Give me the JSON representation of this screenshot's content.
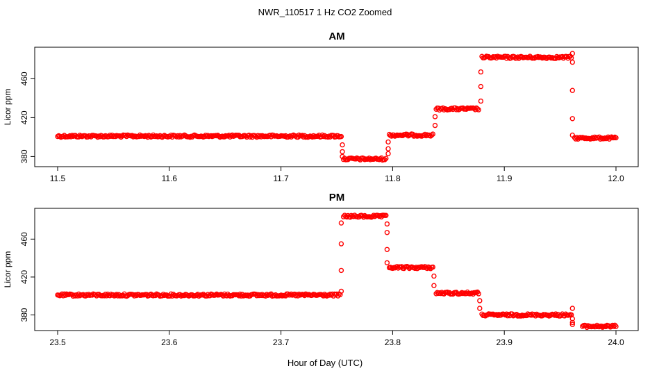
{
  "figure": {
    "title": "NWR_110517  1 Hz CO2 Zoomed",
    "xlabel": "Hour of Day (UTC)"
  },
  "colors": {
    "points": "#ff0000",
    "axis": "#000000"
  },
  "chart_data": [
    {
      "type": "scatter",
      "title": "AM",
      "xlabel": "",
      "ylabel": "Licor ppm",
      "xlim": [
        11.5,
        12.0
      ],
      "ylim": [
        371,
        491
      ],
      "xticks": [
        11.5,
        11.6,
        11.7,
        11.8,
        11.9,
        12.0
      ],
      "xtick_labels": [
        "11.5",
        "11.6",
        "11.7",
        "11.8",
        "11.9",
        "12.0"
      ],
      "yticks": [
        380,
        420,
        460
      ],
      "ytick_labels": [
        "380",
        "420",
        "460"
      ],
      "grid": false,
      "series": [
        {
          "marker": "open-circle",
          "segments": [
            {
              "x_start": 11.5,
              "x_end": 11.754,
              "y": 401
            },
            {
              "x_start": 11.756,
              "x_end": 11.794,
              "y": 377.5
            },
            {
              "x_start": 11.797,
              "x_end": 11.836,
              "y": 402
            },
            {
              "x_start": 11.839,
              "x_end": 11.877,
              "y": 429
            },
            {
              "x_start": 11.88,
              "x_end": 11.96,
              "y": 482
            },
            {
              "x_start": 11.963,
              "x_end": 12.0,
              "y": 399
            }
          ],
          "transitions": [
            {
              "x": 11.755,
              "y": [
                392,
                385,
                380
              ]
            },
            {
              "x": 11.796,
              "y": [
                383,
                388,
                395
              ]
            },
            {
              "x": 11.838,
              "y": [
                412,
                421
              ]
            },
            {
              "x": 11.879,
              "y": [
                437,
                452,
                467
              ]
            },
            {
              "x": 11.961,
              "y": [
                486,
                477,
                448,
                419,
                402
              ]
            }
          ]
        }
      ]
    },
    {
      "type": "scatter",
      "title": "PM",
      "xlabel": "",
      "ylabel": "Licor ppm",
      "xlim": [
        23.5,
        24.0
      ],
      "ylim": [
        365,
        491
      ],
      "xticks": [
        23.5,
        23.6,
        23.7,
        23.8,
        23.9,
        24.0
      ],
      "xtick_labels": [
        "23.5",
        "23.6",
        "23.7",
        "23.8",
        "23.9",
        "24.0"
      ],
      "yticks": [
        380,
        420,
        460
      ],
      "ytick_labels": [
        "380",
        "420",
        "460"
      ],
      "grid": false,
      "series": [
        {
          "marker": "open-circle",
          "segments": [
            {
              "x_start": 23.5,
              "x_end": 23.753,
              "y": 401
            },
            {
              "x_start": 23.756,
              "x_end": 23.794,
              "y": 484
            },
            {
              "x_start": 23.797,
              "x_end": 23.836,
              "y": 430
            },
            {
              "x_start": 23.839,
              "x_end": 23.877,
              "y": 403
            },
            {
              "x_start": 23.88,
              "x_end": 23.96,
              "y": 380
            },
            {
              "x_start": 23.97,
              "x_end": 24.0,
              "y": 368
            }
          ],
          "transitions": [
            {
              "x": 23.754,
              "y": [
                405,
                427,
                455,
                477
              ]
            },
            {
              "x": 23.795,
              "y": [
                476,
                467,
                449,
                435
              ]
            },
            {
              "x": 23.837,
              "y": [
                421,
                411
              ]
            },
            {
              "x": 23.878,
              "y": [
                395,
                387
              ]
            },
            {
              "x": 23.961,
              "y": [
                387,
                376,
                372,
                370
              ]
            }
          ]
        }
      ]
    }
  ]
}
